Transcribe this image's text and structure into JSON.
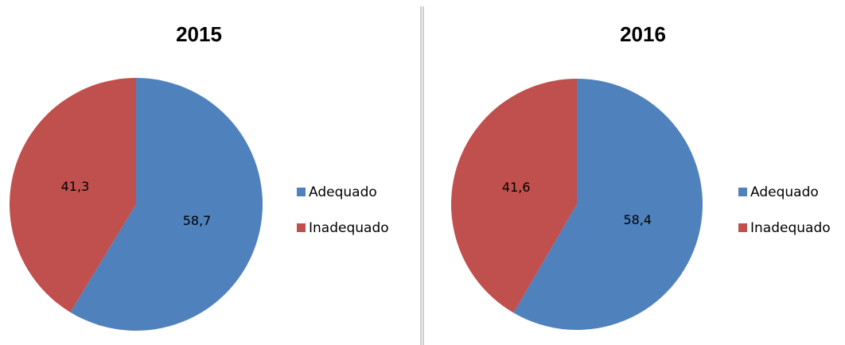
{
  "chart_data": [
    {
      "type": "pie",
      "title": "2015",
      "categories": [
        "Adequado",
        "Inadequado"
      ],
      "values": [
        58.7,
        41.3
      ],
      "value_labels": [
        "58,7",
        "41,3"
      ],
      "colors": [
        "#4f81bd",
        "#c0504d"
      ]
    },
    {
      "type": "pie",
      "title": "2016",
      "categories": [
        "Adequado",
        "Inadequado"
      ],
      "values": [
        58.4,
        41.6
      ],
      "value_labels": [
        "58,4",
        "41,6"
      ],
      "colors": [
        "#4f81bd",
        "#c0504d"
      ]
    }
  ]
}
